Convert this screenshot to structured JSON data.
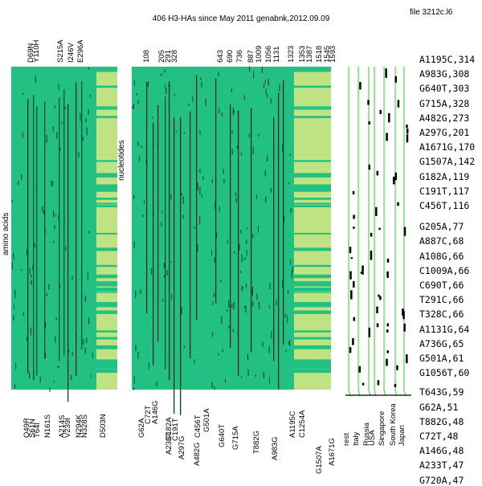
{
  "title": "406 H3-HAs since May 2011 genabnk,2012.09.09",
  "file_label": "file 3212c.l6",
  "y_titles": {
    "amino": "amino acids",
    "nucleotides": "nucleotides"
  },
  "colors": {
    "green": "#22c083",
    "light": "#bfe382",
    "dark": "#0b3d22",
    "line": "#33cc33"
  },
  "aa_top_labels": [
    "D69N",
    "Y110H",
    "S215A",
    "I246V",
    "E296A"
  ],
  "aa_bottom_labels": [
    "Q49R",
    "S61N",
    "T64I",
    "N161S",
    "A214S",
    "V239I",
    "N294K",
    "N328S",
    "D503N"
  ],
  "nt_top_labels": [
    "108",
    "205",
    "291",
    "328",
    "643",
    "690",
    "736",
    "887",
    "1009",
    "1056",
    "1131",
    "1323",
    "1353",
    "1387",
    "1518",
    "1545",
    "1593"
  ],
  "nt_bottom_labels": [
    "G62A",
    "C72T",
    "A146G",
    "A233T",
    "G182A",
    "C191T",
    "A297G",
    "A482G",
    "C456T",
    "G501A",
    "G640T",
    "G715A",
    "T882G",
    "A983G",
    "A1195C",
    "C1254A",
    "G1507A",
    "A1671G"
  ],
  "countries": [
    "rest",
    "Italy",
    "Russia",
    "USA",
    "Singapore",
    "South Korea",
    "Japan"
  ],
  "mutations": [
    "A1195C,314",
    "A983G,308",
    "G640T,303",
    "G715A,328",
    "A482G,273",
    "A297G,201",
    "A1671G,170",
    "G1507A,142",
    "G182A,119",
    "C191T,117",
    "C456T,116",
    "G205A,77",
    "A887C,68",
    "A108G,66",
    "C1009A,66",
    "C690T,66",
    "T291C,66",
    "T328C,66",
    "A1131G,64",
    "A736G,65",
    "G501A,61",
    "G1056T,60",
    "T643G,59",
    "G62A,51",
    "T882G,48",
    "C72T,48",
    "A146G,48",
    "A233T,47",
    "G720A,47"
  ]
}
